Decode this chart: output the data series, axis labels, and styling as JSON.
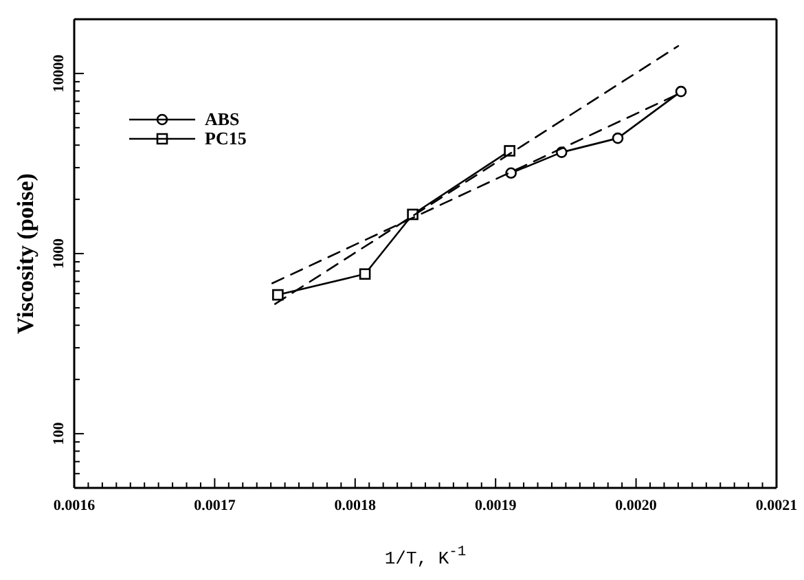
{
  "chart_data": {
    "type": "line",
    "xlabel": "1/T,  K$^{-1}$",
    "ylabel": "Viscosity (poise)",
    "xlim": [
      0.0016,
      0.0021
    ],
    "ylim": [
      50,
      20000
    ],
    "log": "y",
    "legend": "top left",
    "grid": false,
    "xticks": [
      0.0016,
      {
        "value": 0.00161,
        "label": null
      },
      {
        "value": 0.00162,
        "label": null
      },
      {
        "value": 0.00163,
        "label": null
      },
      {
        "value": 0.00164,
        "label": null
      },
      {
        "value": 0.00165,
        "label": null
      },
      {
        "value": 0.00166,
        "label": null
      },
      {
        "value": 0.00167,
        "label": null
      },
      {
        "value": 0.00168,
        "label": null
      },
      {
        "value": 0.00169,
        "label": null
      },
      0.0017,
      {
        "value": 0.00171,
        "label": null
      },
      {
        "value": 0.00172,
        "label": null
      },
      {
        "value": 0.00173,
        "label": null
      },
      {
        "value": 0.00174,
        "label": null
      },
      {
        "value": 0.00175,
        "label": null
      },
      {
        "value": 0.00176,
        "label": null
      },
      {
        "value": 0.00177,
        "label": null
      },
      {
        "value": 0.00178,
        "label": null
      },
      {
        "value": 0.00179,
        "label": null
      },
      0.0018,
      {
        "value": 0.00181,
        "label": null
      },
      {
        "value": 0.00182,
        "label": null
      },
      {
        "value": 0.00183,
        "label": null
      },
      {
        "value": 0.00184,
        "label": null
      },
      {
        "value": 0.00185,
        "label": null
      },
      {
        "value": 0.00186,
        "label": null
      },
      {
        "value": 0.00187,
        "label": null
      },
      {
        "value": 0.00188,
        "label": null
      },
      {
        "value": 0.00189,
        "label": null
      },
      0.0019,
      {
        "value": 0.00191,
        "label": null
      },
      {
        "value": 0.00192,
        "label": null
      },
      {
        "value": 0.00193,
        "label": null
      },
      {
        "value": 0.00194,
        "label": null
      },
      {
        "value": 0.00195,
        "label": null
      },
      {
        "value": 0.00196,
        "label": null
      },
      {
        "value": 0.00197,
        "label": null
      },
      {
        "value": 0.00198,
        "label": null
      },
      {
        "value": 0.00199,
        "label": null
      },
      {
        "value": 0.002,
        "label": "0.0020"
      },
      {
        "value": 0.00201,
        "label": null
      },
      {
        "value": 0.00202,
        "label": null
      },
      {
        "value": 0.00203,
        "label": null
      },
      {
        "value": 0.00204,
        "label": null
      },
      {
        "value": 0.00205,
        "label": null
      },
      {
        "value": 0.00206,
        "label": null
      },
      {
        "value": 0.00207,
        "label": null
      },
      {
        "value": 0.00208,
        "label": null
      },
      {
        "value": 0.00209,
        "label": null
      },
      0.0021
    ],
    "yticks": [
      {
        "value": 50,
        "label": null
      },
      {
        "value": 60,
        "label": null
      },
      {
        "value": 70,
        "label": null
      },
      {
        "value": 80,
        "label": null
      },
      {
        "value": 90,
        "label": null
      },
      100,
      {
        "value": 200,
        "label": null
      },
      {
        "value": 300,
        "label": null
      },
      {
        "value": 400,
        "label": null
      },
      {
        "value": 500,
        "label": null
      },
      {
        "value": 600,
        "label": null
      },
      {
        "value": 700,
        "label": null
      },
      {
        "value": 800,
        "label": null
      },
      {
        "value": 900,
        "label": null
      },
      1000,
      {
        "value": 2000,
        "label": null
      },
      {
        "value": 3000,
        "label": null
      },
      {
        "value": 4000,
        "label": null
      },
      {
        "value": 5000,
        "label": null
      },
      {
        "value": 6000,
        "label": null
      },
      {
        "value": 7000,
        "label": null
      },
      {
        "value": 8000,
        "label": null
      },
      {
        "value": 9000,
        "label": null
      },
      10000,
      {
        "value": 20000,
        "label": null
      }
    ],
    "series": [
      {
        "name": "ABS",
        "color": "#000000",
        "marker": "circle",
        "line_style": "solid",
        "x": [
          0.001911,
          0.001947,
          0.001987,
          0.002032
        ],
        "values": [
          2800,
          3650,
          4370,
          7940
        ]
      },
      {
        "name": "PC15",
        "color": "#000000",
        "marker": "square",
        "line_style": "solid",
        "x": [
          0.001745,
          0.001807,
          0.001841,
          0.00191
        ],
        "values": [
          590,
          770,
          1650,
          3720
        ]
      },
      {
        "color": "#000000",
        "marker": "none",
        "line_style": "dashed",
        "x": [
          0.001743,
          0.00203
        ],
        "values": [
          525,
          14200
        ]
      },
      {
        "color": "#000000",
        "marker": "none",
        "line_style": "dashed",
        "x": [
          0.001741,
          0.00203
        ],
        "values": [
          684,
          7680
        ]
      }
    ]
  }
}
